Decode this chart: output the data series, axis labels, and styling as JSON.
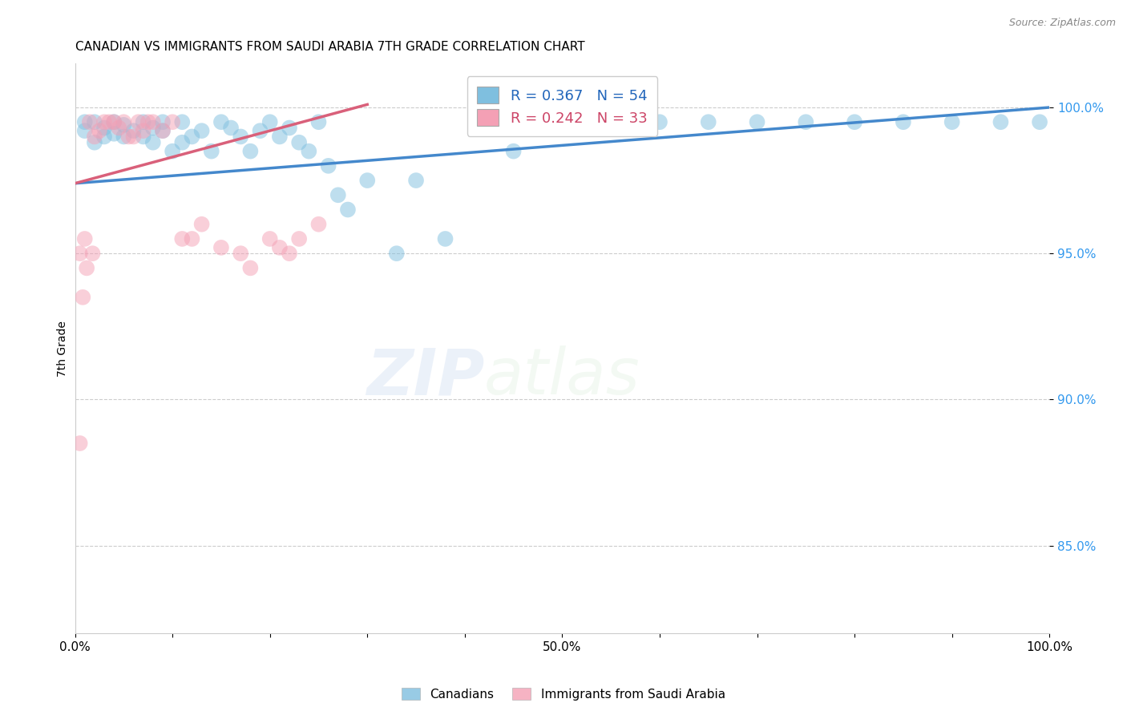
{
  "title": "CANADIAN VS IMMIGRANTS FROM SAUDI ARABIA 7TH GRADE CORRELATION CHART",
  "source": "Source: ZipAtlas.com",
  "ylabel": "7th Grade",
  "xlim": [
    0,
    100
  ],
  "ylim": [
    82,
    101.5
  ],
  "ytick_values": [
    85,
    90,
    95,
    100
  ],
  "watermark_zip": "ZIP",
  "watermark_atlas": "atlas",
  "legend_r1": "R = 0.367   N = 54",
  "legend_r2": "R = 0.242   N = 33",
  "blue_color": "#7fbfdf",
  "pink_color": "#f4a0b5",
  "blue_line_color": "#4488cc",
  "pink_line_color": "#d9607a",
  "blue_trend_x0": 0,
  "blue_trend_y0": 97.4,
  "blue_trend_x1": 100,
  "blue_trend_y1": 100.0,
  "pink_trend_x0": 0,
  "pink_trend_y0": 97.4,
  "pink_trend_x1": 30,
  "pink_trend_y1": 100.1,
  "canadians_x": [
    1,
    1,
    2,
    2,
    3,
    3,
    4,
    4,
    5,
    5,
    6,
    7,
    7,
    8,
    8,
    9,
    9,
    10,
    11,
    11,
    12,
    13,
    14,
    15,
    16,
    17,
    18,
    19,
    20,
    21,
    22,
    23,
    24,
    25,
    26,
    27,
    28,
    30,
    33,
    35,
    38,
    42,
    45,
    50,
    55,
    60,
    65,
    70,
    75,
    80,
    85,
    90,
    95,
    99
  ],
  "canadians_y": [
    99.5,
    99.2,
    99.5,
    98.8,
    99.3,
    99.0,
    99.5,
    99.1,
    99.4,
    99.0,
    99.2,
    99.5,
    99.0,
    99.3,
    98.8,
    99.5,
    99.2,
    98.5,
    99.5,
    98.8,
    99.0,
    99.2,
    98.5,
    99.5,
    99.3,
    99.0,
    98.5,
    99.2,
    99.5,
    99.0,
    99.3,
    98.8,
    98.5,
    99.5,
    98.0,
    97.0,
    96.5,
    97.5,
    95.0,
    97.5,
    95.5,
    99.5,
    98.5,
    99.3,
    99.5,
    99.5,
    99.5,
    99.5,
    99.5,
    99.5,
    99.5,
    99.5,
    99.5,
    99.5
  ],
  "saudi_x": [
    0.5,
    1,
    1.5,
    2,
    2.5,
    3,
    3.5,
    4,
    4.5,
    5,
    5.5,
    6,
    6.5,
    7,
    7.5,
    8,
    9,
    10,
    11,
    12,
    13,
    15,
    17,
    18,
    20,
    21,
    22,
    23,
    25,
    0.5,
    0.8,
    1.2,
    1.8
  ],
  "saudi_y": [
    88.5,
    95.5,
    99.5,
    99.0,
    99.2,
    99.5,
    99.5,
    99.5,
    99.3,
    99.5,
    99.0,
    99.0,
    99.5,
    99.2,
    99.5,
    99.5,
    99.2,
    99.5,
    95.5,
    95.5,
    96.0,
    95.2,
    95.0,
    94.5,
    95.5,
    95.2,
    95.0,
    95.5,
    96.0,
    95.0,
    93.5,
    94.5,
    95.0
  ]
}
